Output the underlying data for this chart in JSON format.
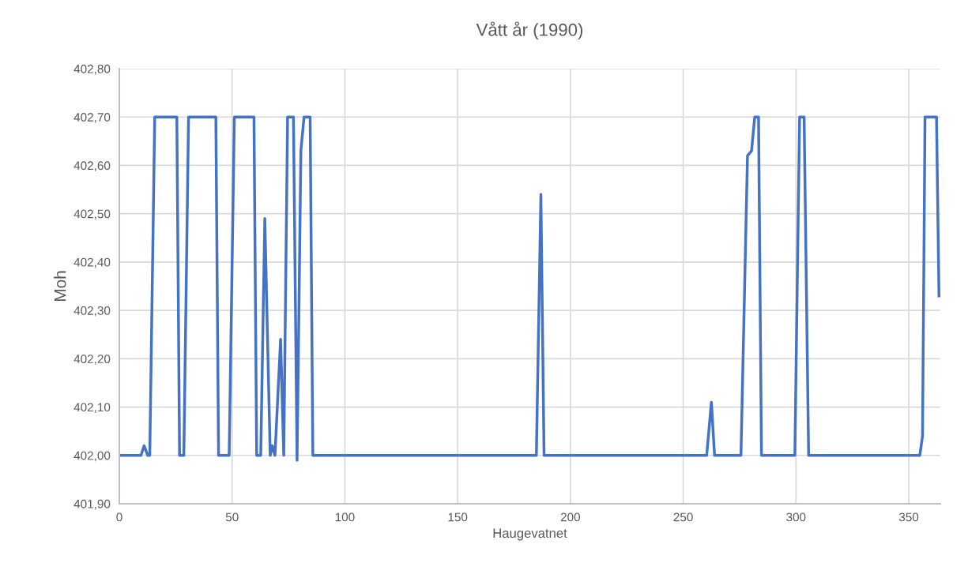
{
  "chart_data": {
    "type": "line",
    "title": "Vått år (1990)",
    "xlabel": "Haugevatnet",
    "ylabel": "Moh",
    "x": [
      0.5,
      9.6,
      11,
      12.6,
      13.5,
      15.7,
      25.5,
      26.7,
      28.6,
      30.7,
      42.8,
      44,
      48.7,
      51,
      59.7,
      60.9,
      62.7,
      64.5,
      66.9,
      67.8,
      69,
      71.5,
      72.9,
      74.6,
      77.2,
      78.8,
      80.5,
      81.9,
      84.6,
      85.8,
      184.9,
      186.9,
      188.3,
      260.4,
      262.5,
      263.9,
      275.6,
      278.5,
      280.3,
      281.7,
      283.4,
      284.7,
      299.5,
      301.6,
      303.6,
      305.6,
      354.9,
      356.1,
      357.2,
      362.3,
      363.4
    ],
    "series": [
      {
        "color": "#4472c4",
        "values": [
          402.0,
          402.0,
          402.02,
          402.0,
          402.0,
          402.7,
          402.7,
          402.0,
          402.0,
          402.7,
          402.7,
          402.0,
          402.0,
          402.7,
          402.7,
          402.0,
          402.0,
          402.49,
          402.0,
          402.02,
          402.0,
          402.24,
          402.0,
          402.7,
          402.7,
          401.99,
          402.63,
          402.7,
          402.7,
          402.0,
          402.0,
          402.54,
          402.0,
          402.0,
          402.11,
          402.0,
          402.0,
          402.62,
          402.63,
          402.7,
          402.7,
          402.0,
          402.0,
          402.7,
          402.7,
          402.0,
          402.0,
          402.04,
          402.7,
          402.7,
          402.33
        ]
      }
    ],
    "xlim": [
      0,
      364
    ],
    "xticks": [
      0,
      50,
      100,
      150,
      200,
      250,
      300,
      350
    ],
    "ylim": [
      401.9,
      402.8
    ],
    "yticks": [
      {
        "value": 401.9,
        "label": "401,90"
      },
      {
        "value": 402.0,
        "label": "402,00"
      },
      {
        "value": 402.1,
        "label": "402,10"
      },
      {
        "value": 402.2,
        "label": "402,20"
      },
      {
        "value": 402.3,
        "label": "402,30"
      },
      {
        "value": 402.4,
        "label": "402,40"
      },
      {
        "value": 402.5,
        "label": "402,50"
      },
      {
        "value": 402.6,
        "label": "402,60"
      },
      {
        "value": 402.7,
        "label": "402,70"
      },
      {
        "value": 402.8,
        "label": "402,80"
      }
    ],
    "grid": true,
    "marker": "none",
    "line_style": "solid"
  }
}
